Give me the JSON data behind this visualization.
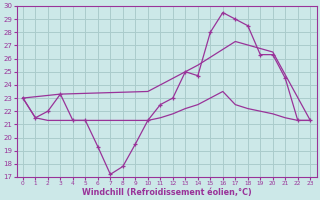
{
  "xlabel": "Windchill (Refroidissement éolien,°C)",
  "background_color": "#cce8e8",
  "grid_color": "#aacccc",
  "line_color": "#993399",
  "xlim": [
    -0.5,
    23.5
  ],
  "ylim": [
    17,
    30
  ],
  "yticks": [
    17,
    18,
    19,
    20,
    21,
    22,
    23,
    24,
    25,
    26,
    27,
    28,
    29,
    30
  ],
  "xticks": [
    0,
    1,
    2,
    3,
    4,
    5,
    6,
    7,
    8,
    9,
    10,
    11,
    12,
    13,
    14,
    15,
    16,
    17,
    18,
    19,
    20,
    21,
    22,
    23
  ],
  "line1_x": [
    0,
    1,
    2,
    3,
    4,
    5,
    6,
    7,
    8,
    9,
    10,
    11,
    12,
    13,
    14,
    15,
    16,
    17,
    18,
    19,
    20,
    21,
    22,
    23
  ],
  "line1_y": [
    23,
    21.5,
    22,
    23.3,
    21.3,
    21.3,
    19.3,
    17.2,
    17.8,
    19.5,
    21.3,
    22.5,
    23,
    25,
    24.7,
    28,
    29.5,
    29,
    28.5,
    26.3,
    26.3,
    24.5,
    21.3,
    21.3
  ],
  "line2_x": [
    0,
    1,
    2,
    3,
    4,
    5,
    6,
    7,
    8,
    9,
    10,
    11,
    12,
    13,
    14,
    15,
    16,
    17,
    18,
    19,
    20,
    21,
    22,
    23
  ],
  "line2_y": [
    23,
    21.5,
    21.3,
    21.3,
    21.3,
    21.3,
    21.3,
    21.3,
    21.3,
    21.3,
    21.3,
    21.5,
    21.8,
    22.2,
    22.5,
    23.0,
    23.5,
    22.5,
    22.2,
    22.0,
    21.8,
    21.5,
    21.3,
    21.3
  ],
  "line3_x": [
    0,
    3,
    10,
    14,
    17,
    20,
    23
  ],
  "line3_y": [
    23,
    23.3,
    23.5,
    25.5,
    27.3,
    26.5,
    21.3
  ]
}
